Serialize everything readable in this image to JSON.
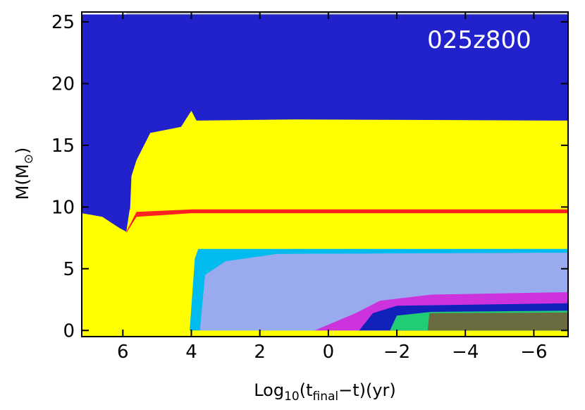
{
  "chart_data": {
    "type": "heatmap",
    "title": "",
    "model_label": "025z800",
    "xlabel": {
      "prefix": "Log",
      "prefix_sub": "10",
      "open": "(t",
      "sub": "final",
      "rest": "−t)(yr)"
    },
    "ylabel": {
      "main": "M(M",
      "sub": "⊙",
      "close": ")"
    },
    "xlim": [
      7.2,
      -7.0
    ],
    "ylim": [
      -0.5,
      25.8
    ],
    "xticks": [
      {
        "value": 6,
        "label": "6"
      },
      {
        "value": 4,
        "label": "4"
      },
      {
        "value": 2,
        "label": "2"
      },
      {
        "value": 0,
        "label": "0"
      },
      {
        "value": -2,
        "label": "−2"
      },
      {
        "value": -4,
        "label": "−4"
      },
      {
        "value": -6,
        "label": "−6"
      }
    ],
    "yticks": [
      {
        "value": 0,
        "label": "0"
      },
      {
        "value": 5,
        "label": "5"
      },
      {
        "value": 10,
        "label": "10"
      },
      {
        "value": 15,
        "label": "15"
      },
      {
        "value": 20,
        "label": "20"
      },
      {
        "value": 25,
        "label": "25"
      }
    ],
    "colors": {
      "envelope": "#2222cc",
      "convective": "#ffff00",
      "hydrogen_shell": "#ff2020",
      "helium_core": "#00bbee",
      "co_core": "#99aaee",
      "neon_burning": "#cc33dd",
      "oxygen_burning": "#1122bb",
      "silicon_burning": "#22cc77",
      "iron_core": "#6b6b40",
      "mass_loss_region": "#c8c8c8"
    },
    "regions": [
      {
        "name": "envelope",
        "color": "envelope",
        "polygon": [
          [
            7.2,
            -0.5
          ],
          [
            7.2,
            25.6
          ],
          [
            -7.0,
            25.6
          ],
          [
            -7.0,
            -0.5
          ]
        ]
      },
      {
        "name": "mass-lost",
        "color": "mass_loss_region",
        "polygon": [
          [
            5.9,
            25.6
          ],
          [
            -7.0,
            25.6
          ],
          [
            -7.0,
            25.8
          ],
          [
            5.9,
            25.8
          ]
        ]
      },
      {
        "name": "outer-convective-zone",
        "color": "convective",
        "polygon": [
          [
            5.8,
            9.0
          ],
          [
            5.75,
            12.5
          ],
          [
            5.6,
            13.8
          ],
          [
            5.2,
            16.0
          ],
          [
            4.3,
            16.5
          ],
          [
            4.0,
            17.8
          ],
          [
            3.85,
            17.0
          ],
          [
            1.0,
            17.1
          ],
          [
            -7.0,
            17.0
          ],
          [
            -7.0,
            9.5
          ],
          [
            5.8,
            9.5
          ]
        ]
      },
      {
        "name": "early-convective-zone",
        "color": "convective",
        "polygon": [
          [
            7.2,
            -0.5
          ],
          [
            7.2,
            9.5
          ],
          [
            6.6,
            9.2
          ],
          [
            6.1,
            8.3
          ],
          [
            5.9,
            8.0
          ],
          [
            5.8,
            9.8
          ],
          [
            -7.0,
            9.8
          ],
          [
            -7.0,
            -0.5
          ]
        ]
      },
      {
        "name": "hydrogen-burning-shell",
        "color": "hydrogen_shell",
        "polygon": [
          [
            5.9,
            8.0
          ],
          [
            5.6,
            9.6
          ],
          [
            4.0,
            9.8
          ],
          [
            -7.0,
            9.8
          ],
          [
            -7.0,
            9.5
          ],
          [
            4.0,
            9.5
          ],
          [
            5.6,
            9.2
          ],
          [
            5.9,
            7.9
          ]
        ]
      },
      {
        "name": "helium-core",
        "color": "helium_core",
        "polygon": [
          [
            4.05,
            0.0
          ],
          [
            3.9,
            5.8
          ],
          [
            3.8,
            6.6
          ],
          [
            -7.0,
            6.6
          ],
          [
            -7.0,
            0.0
          ]
        ]
      },
      {
        "name": "co-core",
        "color": "co_core",
        "polygon": [
          [
            3.75,
            0.0
          ],
          [
            3.6,
            4.5
          ],
          [
            3.0,
            5.6
          ],
          [
            1.5,
            6.2
          ],
          [
            -7.0,
            6.3
          ],
          [
            -7.0,
            0.0
          ]
        ]
      },
      {
        "name": "neon-shell",
        "color": "neon_burning",
        "polygon": [
          [
            0.4,
            0.0
          ],
          [
            -0.8,
            1.4
          ],
          [
            -1.5,
            2.4
          ],
          [
            -3.0,
            2.9
          ],
          [
            -7.0,
            3.1
          ],
          [
            -7.0,
            0.0
          ]
        ]
      },
      {
        "name": "oxygen-shell",
        "color": "oxygen_burning",
        "polygon": [
          [
            -0.9,
            0.0
          ],
          [
            -1.3,
            1.4
          ],
          [
            -2.0,
            2.0
          ],
          [
            -7.0,
            2.2
          ],
          [
            -7.0,
            0.0
          ]
        ]
      },
      {
        "name": "silicon-shell",
        "color": "silicon_burning",
        "polygon": [
          [
            -1.8,
            0.0
          ],
          [
            -2.0,
            1.2
          ],
          [
            -3.0,
            1.5
          ],
          [
            -7.0,
            1.6
          ],
          [
            -7.0,
            0.0
          ]
        ]
      },
      {
        "name": "iron-core",
        "color": "iron_core",
        "polygon": [
          [
            -2.9,
            0.0
          ],
          [
            -2.95,
            1.4
          ],
          [
            -7.0,
            1.45
          ],
          [
            -7.0,
            0.0
          ]
        ]
      }
    ]
  }
}
